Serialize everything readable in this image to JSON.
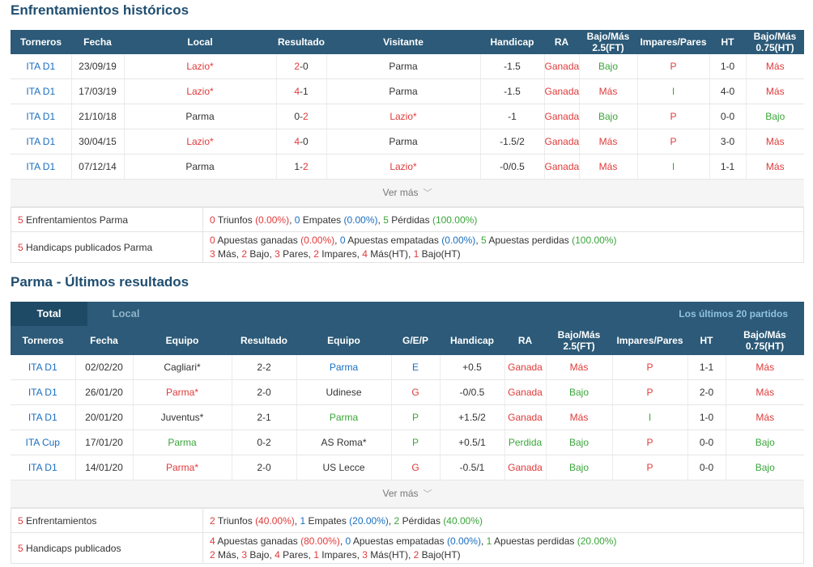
{
  "section1": {
    "title": "Enfrentamientos históricos",
    "headers": [
      "Torneros",
      "Fecha",
      "Local",
      "Resultado",
      "Visitante",
      "Handicap",
      "RA",
      "Bajo/Más 2.5(FT)",
      "Impares/Pares",
      "HT",
      "Bajo/Más 0.75(HT)"
    ],
    "rows": [
      {
        "tournament": "ITA D1",
        "date": "23/09/19",
        "home": "Lazio*",
        "home_color": "red",
        "score_home": "2",
        "score_away": "0",
        "home_score_color": "red",
        "away_score_color": "dark",
        "away": "Parma",
        "away_color": "dark",
        "handicap": "-1.5",
        "ra": "Ganada",
        "ou": "Bajo",
        "ou_color": "green",
        "oe": "P",
        "oe_color": "red",
        "ht": "1-0",
        "ou_ht": "Más",
        "ou_ht_color": "red"
      },
      {
        "tournament": "ITA D1",
        "date": "17/03/19",
        "home": "Lazio*",
        "home_color": "red",
        "score_home": "4",
        "score_away": "1",
        "home_score_color": "red",
        "away_score_color": "dark",
        "away": "Parma",
        "away_color": "dark",
        "handicap": "-1.5",
        "ra": "Ganada",
        "ou": "Más",
        "ou_color": "red",
        "oe": "I",
        "oe_color": "green",
        "ht": "4-0",
        "ou_ht": "Más",
        "ou_ht_color": "red"
      },
      {
        "tournament": "ITA D1",
        "date": "21/10/18",
        "home": "Parma",
        "home_color": "dark",
        "score_home": "0",
        "score_away": "2",
        "home_score_color": "dark",
        "away_score_color": "red",
        "away": "Lazio*",
        "away_color": "red",
        "handicap": "-1",
        "ra": "Ganada",
        "ou": "Bajo",
        "ou_color": "green",
        "oe": "P",
        "oe_color": "red",
        "ht": "0-0",
        "ou_ht": "Bajo",
        "ou_ht_color": "green"
      },
      {
        "tournament": "ITA D1",
        "date": "30/04/15",
        "home": "Lazio*",
        "home_color": "red",
        "score_home": "4",
        "score_away": "0",
        "home_score_color": "red",
        "away_score_color": "dark",
        "away": "Parma",
        "away_color": "dark",
        "handicap": "-1.5/2",
        "ra": "Ganada",
        "ou": "Más",
        "ou_color": "red",
        "oe": "P",
        "oe_color": "red",
        "ht": "3-0",
        "ou_ht": "Más",
        "ou_ht_color": "red"
      },
      {
        "tournament": "ITA D1",
        "date": "07/12/14",
        "home": "Parma",
        "home_color": "dark",
        "score_home": "1",
        "score_away": "2",
        "home_score_color": "dark",
        "away_score_color": "red",
        "away": "Lazio*",
        "away_color": "red",
        "handicap": "-0/0.5",
        "ra": "Ganada",
        "ou": "Más",
        "ou_color": "red",
        "oe": "I",
        "oe_color": "green",
        "ht": "1-1",
        "ou_ht": "Más",
        "ou_ht_color": "red"
      }
    ],
    "more_label": "Ver más",
    "summary": {
      "row1_label": "Enfrentamientos Parma",
      "row1_label_num": "5",
      "wins_num": "0",
      "wins_label": "Triunfos",
      "wins_pct": "(0.00%)",
      "draws_num": "0",
      "draws_label": "Empates",
      "draws_pct": "(0.00%)",
      "losses_num": "5",
      "losses_label": "Pérdidas",
      "losses_pct": "(100.00%)",
      "row2_label": "Handicaps publicados Parma",
      "row2_label_num": "5",
      "won_num": "0",
      "won_label": "Apuestas ganadas",
      "won_pct": "(0.00%)",
      "tied_num": "0",
      "tied_label": "Apuestas empatadas",
      "tied_pct": "(0.00%)",
      "lost_num": "5",
      "lost_label": "Apuestas perdidas",
      "lost_pct": "(100.00%)",
      "mas_num": "3",
      "mas_label": "Más,",
      "bajo_num": "2",
      "bajo_label": "Bajo,",
      "pares_num": "3",
      "pares_label": "Pares,",
      "impares_num": "2",
      "impares_label": "Impares,",
      "masht_num": "4",
      "masht_label": "Más(HT),",
      "bajoht_num": "1",
      "bajoht_label": "Bajo(HT)"
    }
  },
  "section2": {
    "title": "Parma - Últimos resultados",
    "tab_total": "Total",
    "tab_local": "Local",
    "last_label": "Los últimos 20 partidos",
    "headers": [
      "Torneros",
      "Fecha",
      "Equipo",
      "Resultado",
      "Equipo",
      "G/E/P",
      "Handicap",
      "RA",
      "Bajo/Más 2.5(FT)",
      "Impares/Pares",
      "HT",
      "Bajo/Más 0.75(HT)"
    ],
    "rows": [
      {
        "tournament": "ITA D1",
        "date": "02/02/20",
        "home": "Cagliari*",
        "home_color": "dark",
        "score": "2-2",
        "score_color": "dark",
        "away": "Parma",
        "away_color": "blue",
        "gep": "E",
        "gep_color": "blue",
        "handicap": "+0.5",
        "ra": "Ganada",
        "ra_color": "red",
        "ou": "Más",
        "ou_color": "red",
        "oe": "P",
        "oe_color": "red",
        "ht": "1-1",
        "ou_ht": "Más",
        "ou_ht_color": "red"
      },
      {
        "tournament": "ITA D1",
        "date": "26/01/20",
        "home": "Parma*",
        "home_color": "red",
        "score": "2-0",
        "score_color": "dark",
        "away": "Udinese",
        "away_color": "dark",
        "gep": "G",
        "gep_color": "red",
        "handicap": "-0/0.5",
        "ra": "Ganada",
        "ra_color": "red",
        "ou": "Bajo",
        "ou_color": "green",
        "oe": "P",
        "oe_color": "red",
        "ht": "2-0",
        "ou_ht": "Más",
        "ou_ht_color": "red"
      },
      {
        "tournament": "ITA D1",
        "date": "20/01/20",
        "home": "Juventus*",
        "home_color": "dark",
        "score": "2-1",
        "score_color": "dark",
        "away": "Parma",
        "away_color": "green",
        "gep": "P",
        "gep_color": "green",
        "handicap": "+1.5/2",
        "ra": "Ganada",
        "ra_color": "red",
        "ou": "Más",
        "ou_color": "red",
        "oe": "I",
        "oe_color": "green",
        "ht": "1-0",
        "ou_ht": "Más",
        "ou_ht_color": "red"
      },
      {
        "tournament": "ITA Cup",
        "date": "17/01/20",
        "home": "Parma",
        "home_color": "green",
        "score": "0-2",
        "score_color": "dark",
        "away": "AS Roma*",
        "away_color": "dark",
        "gep": "P",
        "gep_color": "green",
        "handicap": "+0.5/1",
        "ra": "Perdida",
        "ra_color": "green",
        "ou": "Bajo",
        "ou_color": "green",
        "oe": "P",
        "oe_color": "red",
        "ht": "0-0",
        "ou_ht": "Bajo",
        "ou_ht_color": "green"
      },
      {
        "tournament": "ITA D1",
        "date": "14/01/20",
        "home": "Parma*",
        "home_color": "red",
        "score": "2-0",
        "score_color": "dark",
        "away": "US Lecce",
        "away_color": "dark",
        "gep": "G",
        "gep_color": "red",
        "handicap": "-0.5/1",
        "ra": "Ganada",
        "ra_color": "red",
        "ou": "Bajo",
        "ou_color": "green",
        "oe": "P",
        "oe_color": "red",
        "ht": "0-0",
        "ou_ht": "Bajo",
        "ou_ht_color": "green"
      }
    ],
    "more_label": "Ver más",
    "summary": {
      "row1_label": "Enfrentamientos",
      "row1_label_num": "5",
      "wins_num": "2",
      "wins_label": "Triunfos",
      "wins_pct": "(40.00%)",
      "draws_num": "1",
      "draws_label": "Empates",
      "draws_pct": "(20.00%)",
      "losses_num": "2",
      "losses_label": "Pérdidas",
      "losses_pct": "(40.00%)",
      "row2_label": "Handicaps publicados",
      "row2_label_num": "5",
      "won_num": "4",
      "won_label": "Apuestas ganadas",
      "won_pct": "(80.00%)",
      "tied_num": "0",
      "tied_label": "Apuestas empatadas",
      "tied_pct": "(0.00%)",
      "lost_num": "1",
      "lost_label": "Apuestas perdidas",
      "lost_pct": "(20.00%)",
      "mas_num": "2",
      "mas_label": "Más,",
      "bajo_num": "3",
      "bajo_label": "Bajo,",
      "pares_num": "4",
      "pares_label": "Pares,",
      "impares_num": "1",
      "impares_label": "Impares,",
      "masht_num": "3",
      "masht_label": "Más(HT),",
      "bajoht_num": "2",
      "bajoht_label": "Bajo(HT)"
    }
  },
  "colors": {
    "header_bg": "#2c5a78",
    "red": "#e03a3a",
    "green": "#3aa53a",
    "blue": "#1a6ec0",
    "title": "#1f4e70"
  }
}
